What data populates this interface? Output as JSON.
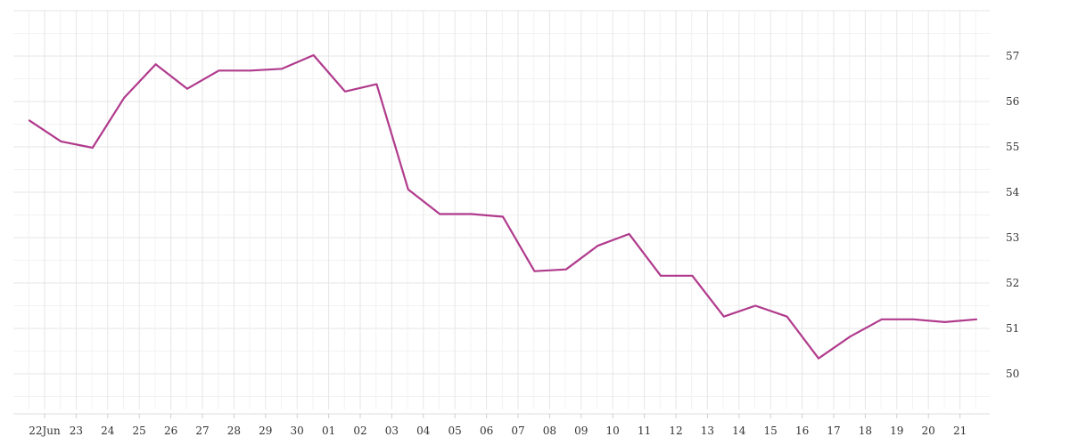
{
  "chart_data": {
    "type": "line",
    "title": "",
    "xlabel": "",
    "ylabel": "",
    "grid": true,
    "y_axis_side": "right",
    "ylim": [
      49.1,
      58.0
    ],
    "y_ticks": [
      50,
      51,
      52,
      53,
      54,
      55,
      56,
      57
    ],
    "x_tick_labels": [
      "22Jun",
      "23",
      "24",
      "25",
      "26",
      "27",
      "28",
      "29",
      "30",
      "01",
      "02",
      "03",
      "04",
      "05",
      "06",
      "07",
      "08",
      "09",
      "10",
      "11",
      "12",
      "13",
      "14",
      "15",
      "16",
      "17",
      "18",
      "19",
      "20",
      "21"
    ],
    "series": [
      {
        "color": "#b03a8c",
        "values": [
          55.58,
          55.12,
          54.98,
          56.08,
          56.82,
          56.28,
          56.68,
          56.68,
          56.72,
          57.02,
          56.22,
          56.38,
          54.06,
          53.52,
          53.52,
          53.46,
          52.26,
          52.3,
          52.82,
          53.08,
          52.16,
          52.16,
          51.26,
          51.5,
          51.26,
          50.34,
          50.82,
          51.2,
          51.2,
          51.14,
          51.2
        ]
      }
    ]
  }
}
